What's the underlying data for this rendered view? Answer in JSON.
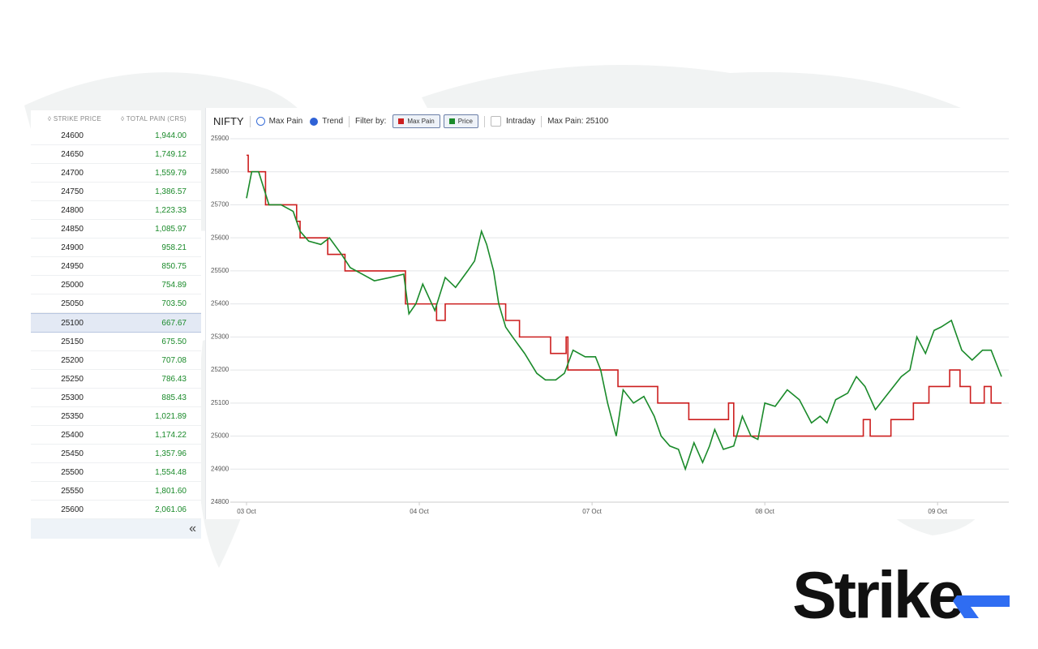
{
  "table": {
    "columns": [
      "STRIKE PRICE",
      "TOTAL PAIN (CRS)"
    ],
    "rows": [
      [
        24600,
        "1,944.00"
      ],
      [
        24650,
        "1,749.12"
      ],
      [
        24700,
        "1,559.79"
      ],
      [
        24750,
        "1,386.57"
      ],
      [
        24800,
        "1,223.33"
      ],
      [
        24850,
        "1,085.97"
      ],
      [
        24900,
        "958.21"
      ],
      [
        24950,
        "850.75"
      ],
      [
        25000,
        "754.89"
      ],
      [
        25050,
        "703.50"
      ],
      [
        25100,
        "667.67"
      ],
      [
        25150,
        "675.50"
      ],
      [
        25200,
        "707.08"
      ],
      [
        25250,
        "786.43"
      ],
      [
        25300,
        "885.43"
      ],
      [
        25350,
        "1,021.89"
      ],
      [
        25400,
        "1,174.22"
      ],
      [
        25450,
        "1,357.96"
      ],
      [
        25500,
        "1,554.48"
      ],
      [
        25550,
        "1,801.60"
      ],
      [
        25600,
        "2,061.06"
      ]
    ]
  },
  "toolbar": {
    "symbol": "NIFTY",
    "modes": [
      "Max Pain",
      "Trend"
    ],
    "filter_label": "Filter by:",
    "intraday": "Intraday",
    "max_pain": "Max Pain: 25100"
  },
  "logo": "Strike",
  "chart_data": {
    "type": "line",
    "xlim": [
      0,
      4.37
    ],
    "xticks": [
      {
        "value": 0,
        "label": "03 Oct"
      },
      {
        "value": 1,
        "label": "04 Oct"
      },
      {
        "value": 2,
        "label": "07 Oct"
      },
      {
        "value": 3,
        "label": "08 Oct"
      },
      {
        "value": 4,
        "label": "09 Oct"
      }
    ],
    "ylim": [
      24800,
      25900
    ],
    "yticks": [
      24800,
      24900,
      25000,
      25100,
      25200,
      25300,
      25400,
      25500,
      25600,
      25700,
      25800,
      25900
    ],
    "grid": true,
    "series": [
      {
        "name": "Max Pain",
        "color": "#cc1f1f",
        "step": true,
        "x": [
          0,
          0.01,
          0.11,
          0.29,
          0.31,
          0.47,
          0.57,
          0.92,
          1.1,
          1.15,
          1.5,
          1.58,
          1.76,
          1.85,
          1.86,
          2.15,
          2.38,
          2.56,
          2.79,
          2.82,
          3.57,
          3.61,
          3.73,
          3.86,
          3.95,
          4.07,
          4.13,
          4.19,
          4.27,
          4.31,
          4.37
        ],
        "values": [
          25850,
          25800,
          25700,
          25650,
          25600,
          25550,
          25500,
          25400,
          25350,
          25400,
          25350,
          25300,
          25250,
          25300,
          25200,
          25150,
          25100,
          25050,
          25100,
          25000,
          25050,
          25000,
          25050,
          25100,
          25150,
          25200,
          25150,
          25100,
          25150,
          25100,
          25100
        ]
      },
      {
        "name": "Price",
        "color": "#1a8a2a",
        "step": false,
        "x": [
          0,
          0.03,
          0.07,
          0.13,
          0.2,
          0.27,
          0.31,
          0.36,
          0.43,
          0.48,
          0.55,
          0.6,
          0.67,
          0.74,
          0.83,
          0.91,
          0.94,
          0.98,
          1.02,
          1.09,
          1.15,
          1.21,
          1.28,
          1.32,
          1.36,
          1.39,
          1.43,
          1.46,
          1.5,
          1.54,
          1.61,
          1.68,
          1.73,
          1.79,
          1.84,
          1.89,
          1.96,
          2.02,
          2.05,
          2.09,
          2.14,
          2.18,
          2.24,
          2.3,
          2.36,
          2.4,
          2.45,
          2.5,
          2.54,
          2.59,
          2.64,
          2.68,
          2.71,
          2.76,
          2.82,
          2.87,
          2.92,
          2.96,
          3.0,
          3.06,
          3.13,
          3.2,
          3.27,
          3.32,
          3.36,
          3.41,
          3.48,
          3.53,
          3.58,
          3.64,
          3.7,
          3.79,
          3.84,
          3.88,
          3.93,
          3.98,
          4.02,
          4.08,
          4.14,
          4.2,
          4.26,
          4.31,
          4.37
        ],
        "values": [
          25720,
          25800,
          25800,
          25700,
          25700,
          25680,
          25620,
          25590,
          25580,
          25600,
          25550,
          25510,
          25490,
          25470,
          25480,
          25490,
          25370,
          25400,
          25460,
          25380,
          25480,
          25450,
          25500,
          25530,
          25620,
          25580,
          25500,
          25400,
          25330,
          25300,
          25250,
          25190,
          25170,
          25170,
          25190,
          25260,
          25240,
          25240,
          25200,
          25100,
          25000,
          25140,
          25100,
          25120,
          25060,
          25000,
          24970,
          24960,
          24900,
          24980,
          24920,
          24970,
          25020,
          24960,
          24970,
          25060,
          25000,
          24990,
          25100,
          25090,
          25140,
          25110,
          25040,
          25060,
          25040,
          25110,
          25130,
          25180,
          25150,
          25080,
          25120,
          25180,
          25200,
          25300,
          25250,
          25320,
          25330,
          25350,
          25260,
          25230,
          25260,
          25260,
          25180
        ]
      }
    ]
  }
}
